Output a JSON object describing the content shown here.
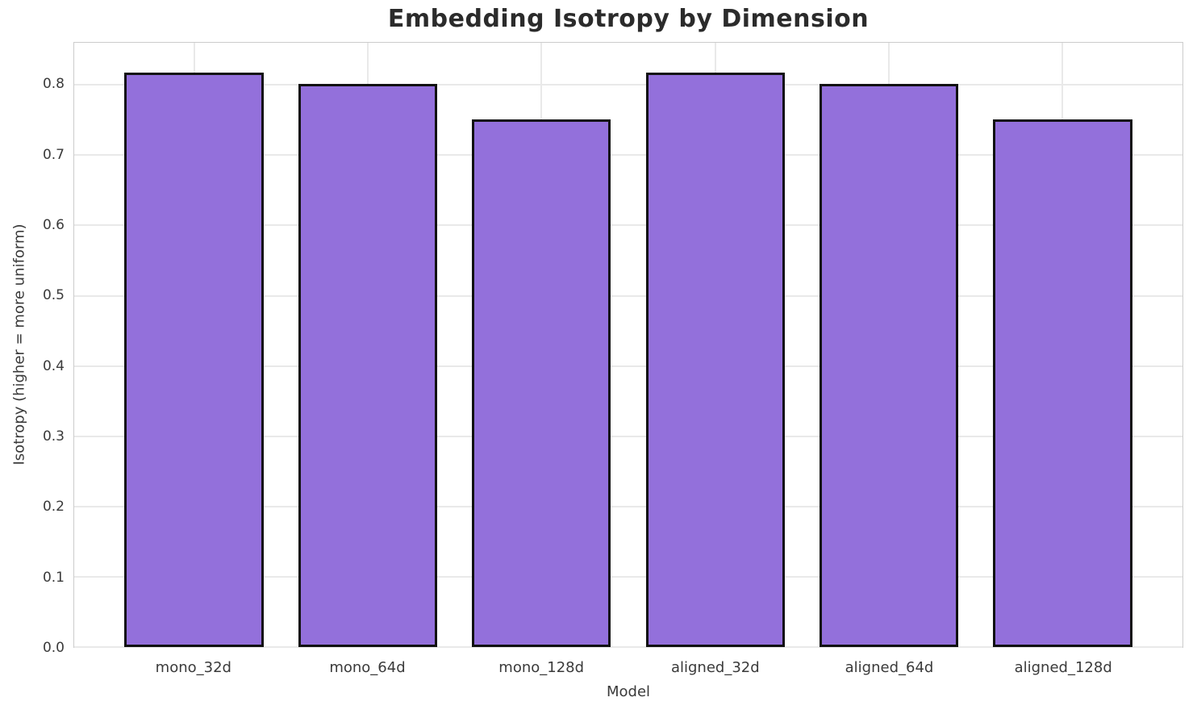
{
  "chart_data": {
    "type": "bar",
    "title": "Embedding Isotropy by Dimension",
    "xlabel": "Model",
    "ylabel": "Isotropy (higher = more uniform)",
    "categories": [
      "mono_32d",
      "mono_64d",
      "mono_128d",
      "aligned_32d",
      "aligned_64d",
      "aligned_128d"
    ],
    "values": [
      0.818,
      0.801,
      0.751,
      0.818,
      0.801,
      0.751
    ],
    "ylim": [
      0,
      0.86
    ],
    "yticks": [
      0.0,
      0.1,
      0.2,
      0.3,
      0.4,
      0.5,
      0.6,
      0.7,
      0.8
    ],
    "ytick_labels": [
      "0.0",
      "0.1",
      "0.2",
      "0.3",
      "0.4",
      "0.5",
      "0.6",
      "0.7",
      "0.8"
    ],
    "grid": true,
    "legend_position": "none",
    "bar_color": "#9370DB",
    "bar_edge_color": "#111111",
    "grid_color": "#e9e9e9",
    "spine_color": "#cccccc",
    "title_color": "#2b2b2b",
    "label_color": "#3a3a3a",
    "background_color": "#ffffff"
  }
}
